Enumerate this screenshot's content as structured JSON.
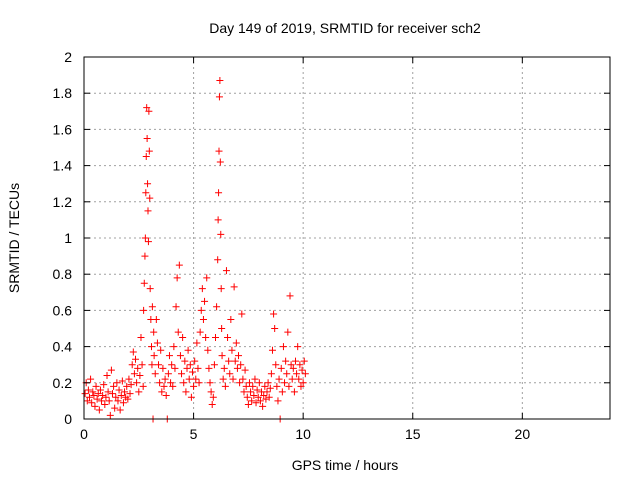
{
  "chart_data": {
    "type": "scatter",
    "title": "Day 149 of 2019, SRMTID for receiver sch2",
    "xlabel": "GPS time / hours",
    "ylabel": "SRMTID / TECUs",
    "xlim": [
      0,
      24
    ],
    "ylim": [
      0,
      2
    ],
    "xticks": [
      0,
      5,
      10,
      15,
      20
    ],
    "xtick_labels": [
      "0",
      "5",
      "10",
      "15",
      "20"
    ],
    "yticks": [
      0,
      0.2,
      0.4,
      0.6,
      0.8,
      1,
      1.2,
      1.4,
      1.6,
      1.8,
      2
    ],
    "ytick_labels": [
      "0",
      "0.2",
      "0.4",
      "0.6",
      "0.8",
      "1",
      "1.2",
      "1.4",
      "1.6",
      "1.8",
      "2"
    ],
    "grid": true,
    "marker": "+",
    "series": [
      {
        "name": "sch2",
        "color": "#ff0000",
        "points": [
          [
            0.05,
            0.14
          ],
          [
            0.1,
            0.2
          ],
          [
            0.15,
            0.1
          ],
          [
            0.2,
            0.16
          ],
          [
            0.25,
            0.12
          ],
          [
            0.3,
            0.22
          ],
          [
            0.35,
            0.09
          ],
          [
            0.4,
            0.15
          ],
          [
            0.45,
            0.13
          ],
          [
            0.5,
            0.07
          ],
          [
            0.55,
            0.18
          ],
          [
            0.6,
            0.11
          ],
          [
            0.65,
            0.14
          ],
          [
            0.7,
            0.05
          ],
          [
            0.75,
            0.16
          ],
          [
            0.8,
            0.1
          ],
          [
            0.85,
            0.13
          ],
          [
            0.9,
            0.19
          ],
          [
            0.95,
            0.08
          ],
          [
            1.0,
            0.12
          ],
          [
            1.05,
            0.24
          ],
          [
            1.1,
            0.15
          ],
          [
            1.15,
            0.1
          ],
          [
            1.2,
            0.02
          ],
          [
            1.25,
            0.27
          ],
          [
            1.3,
            0.14
          ],
          [
            1.35,
            0.18
          ],
          [
            1.4,
            0.06
          ],
          [
            1.45,
            0.12
          ],
          [
            1.5,
            0.2
          ],
          [
            1.55,
            0.1
          ],
          [
            1.6,
            0.16
          ],
          [
            1.65,
            0.05
          ],
          [
            1.7,
            0.13
          ],
          [
            1.75,
            0.21
          ],
          [
            1.8,
            0.09
          ],
          [
            1.85,
            0.15
          ],
          [
            1.9,
            0.12
          ],
          [
            1.95,
            0.18
          ],
          [
            2.0,
            0.11
          ],
          [
            2.05,
            0.22
          ],
          [
            2.1,
            0.14
          ],
          [
            2.15,
            0.19
          ],
          [
            2.2,
            0.3
          ],
          [
            2.25,
            0.37
          ],
          [
            2.3,
            0.25
          ],
          [
            2.35,
            0.33
          ],
          [
            2.4,
            0.2
          ],
          [
            2.45,
            0.28
          ],
          [
            2.5,
            0.15
          ],
          [
            2.55,
            0.24
          ],
          [
            2.6,
            0.45
          ],
          [
            2.65,
            0.3
          ],
          [
            2.7,
            0.18
          ],
          [
            2.72,
            0.6
          ],
          [
            2.75,
            0.75
          ],
          [
            2.78,
            0.9
          ],
          [
            2.8,
            1.0
          ],
          [
            2.82,
            1.25
          ],
          [
            2.84,
            1.45
          ],
          [
            2.86,
            1.72
          ],
          [
            2.88,
            1.55
          ],
          [
            2.9,
            1.3
          ],
          [
            2.92,
            1.15
          ],
          [
            2.94,
            0.98
          ],
          [
            2.96,
            1.7
          ],
          [
            2.98,
            1.48
          ],
          [
            3.0,
            1.22
          ],
          [
            3.02,
            0.72
          ],
          [
            3.05,
            0.55
          ],
          [
            3.08,
            0.4
          ],
          [
            3.1,
            0.3
          ],
          [
            3.12,
            0.62
          ],
          [
            3.15,
            0.0
          ],
          [
            3.18,
            0.48
          ],
          [
            3.2,
            0.35
          ],
          [
            3.25,
            0.25
          ],
          [
            3.3,
            0.55
          ],
          [
            3.35,
            0.42
          ],
          [
            3.4,
            0.3
          ],
          [
            3.45,
            0.2
          ],
          [
            3.5,
            0.38
          ],
          [
            3.55,
            0.15
          ],
          [
            3.6,
            0.28
          ],
          [
            3.65,
            0.18
          ],
          [
            3.7,
            0.22
          ],
          [
            3.75,
            0.13
          ],
          [
            3.8,
            0.0
          ],
          [
            3.85,
            0.25
          ],
          [
            3.9,
            0.35
          ],
          [
            3.95,
            0.2
          ],
          [
            4.0,
            0.3
          ],
          [
            4.05,
            0.18
          ],
          [
            4.1,
            0.4
          ],
          [
            4.15,
            0.28
          ],
          [
            4.2,
            0.62
          ],
          [
            4.25,
            0.78
          ],
          [
            4.3,
            0.48
          ],
          [
            4.35,
            0.85
          ],
          [
            4.4,
            0.35
          ],
          [
            4.45,
            0.25
          ],
          [
            4.5,
            0.45
          ],
          [
            4.55,
            0.2
          ],
          [
            4.6,
            0.32
          ],
          [
            4.65,
            0.15
          ],
          [
            4.7,
            0.28
          ],
          [
            4.75,
            0.38
          ],
          [
            4.8,
            0.22
          ],
          [
            4.85,
            0.3
          ],
          [
            4.9,
            0.12
          ],
          [
            4.95,
            0.26
          ],
          [
            5.0,
            0.18
          ],
          [
            5.05,
            0.32
          ],
          [
            5.1,
            0.22
          ],
          [
            5.15,
            0.42
          ],
          [
            5.2,
            0.28
          ],
          [
            5.25,
            0.2
          ],
          [
            5.3,
            0.48
          ],
          [
            5.35,
            0.6
          ],
          [
            5.4,
            0.72
          ],
          [
            5.45,
            0.55
          ],
          [
            5.5,
            0.65
          ],
          [
            5.55,
            0.45
          ],
          [
            5.6,
            0.78
          ],
          [
            5.65,
            0.38
          ],
          [
            5.7,
            0.28
          ],
          [
            5.75,
            0.2
          ],
          [
            5.8,
            0.15
          ],
          [
            5.85,
            0.08
          ],
          [
            5.9,
            0.12
          ],
          [
            5.95,
            0.3
          ],
          [
            6.0,
            0.45
          ],
          [
            6.05,
            0.62
          ],
          [
            6.1,
            0.88
          ],
          [
            6.12,
            1.1
          ],
          [
            6.14,
            1.25
          ],
          [
            6.16,
            1.48
          ],
          [
            6.18,
            1.78
          ],
          [
            6.2,
            1.87
          ],
          [
            6.22,
            1.42
          ],
          [
            6.24,
            1.02
          ],
          [
            6.26,
            0.72
          ],
          [
            6.28,
            0.5
          ],
          [
            6.3,
            0.35
          ],
          [
            6.35,
            0.22
          ],
          [
            6.4,
            0.28
          ],
          [
            6.45,
            0.18
          ],
          [
            6.5,
            0.82
          ],
          [
            6.55,
            0.45
          ],
          [
            6.6,
            0.32
          ],
          [
            6.65,
            0.25
          ],
          [
            6.7,
            0.55
          ],
          [
            6.75,
            0.38
          ],
          [
            6.8,
            0.22
          ],
          [
            6.85,
            0.73
          ],
          [
            6.9,
            0.32
          ],
          [
            6.95,
            0.42
          ],
          [
            7.0,
            0.28
          ],
          [
            7.05,
            0.35
          ],
          [
            7.1,
            0.2
          ],
          [
            7.15,
            0.3
          ],
          [
            7.2,
            0.58
          ],
          [
            7.25,
            0.22
          ],
          [
            7.3,
            0.15
          ],
          [
            7.35,
            0.27
          ],
          [
            7.4,
            0.18
          ],
          [
            7.45,
            0.12
          ],
          [
            7.5,
            0.08
          ],
          [
            7.55,
            0.2
          ],
          [
            7.6,
            0.15
          ],
          [
            7.65,
            0.1
          ],
          [
            7.7,
            0.18
          ],
          [
            7.75,
            0.13
          ],
          [
            7.8,
            0.22
          ],
          [
            7.85,
            0.09
          ],
          [
            7.9,
            0.16
          ],
          [
            7.95,
            0.12
          ],
          [
            8.0,
            0.2
          ],
          [
            8.05,
            0.1
          ],
          [
            8.1,
            0.15
          ],
          [
            8.15,
            0.07
          ],
          [
            8.2,
            0.13
          ],
          [
            8.25,
            0.18
          ],
          [
            8.3,
            0.11
          ],
          [
            8.35,
            0.15
          ],
          [
            8.4,
            0.2
          ],
          [
            8.45,
            0.12
          ],
          [
            8.5,
            0.17
          ],
          [
            8.55,
            0.25
          ],
          [
            8.6,
            0.38
          ],
          [
            8.65,
            0.58
          ],
          [
            8.7,
            0.5
          ],
          [
            8.75,
            0.3
          ],
          [
            8.8,
            0.18
          ],
          [
            8.85,
            0.1
          ],
          [
            8.9,
            0.22
          ],
          [
            8.95,
            0.0
          ],
          [
            9.0,
            0.28
          ],
          [
            9.05,
            0.15
          ],
          [
            9.1,
            0.4
          ],
          [
            9.15,
            0.2
          ],
          [
            9.2,
            0.32
          ],
          [
            9.25,
            0.25
          ],
          [
            9.3,
            0.48
          ],
          [
            9.35,
            0.18
          ],
          [
            9.4,
            0.68
          ],
          [
            9.45,
            0.3
          ],
          [
            9.5,
            0.22
          ],
          [
            9.55,
            0.28
          ],
          [
            9.6,
            0.15
          ],
          [
            9.65,
            0.32
          ],
          [
            9.7,
            0.25
          ],
          [
            9.75,
            0.4
          ],
          [
            9.8,
            0.22
          ],
          [
            9.85,
            0.3
          ],
          [
            9.9,
            0.18
          ],
          [
            9.95,
            0.27
          ],
          [
            10.0,
            0.2
          ],
          [
            10.05,
            0.32
          ],
          [
            10.1,
            0.25
          ]
        ]
      }
    ]
  }
}
